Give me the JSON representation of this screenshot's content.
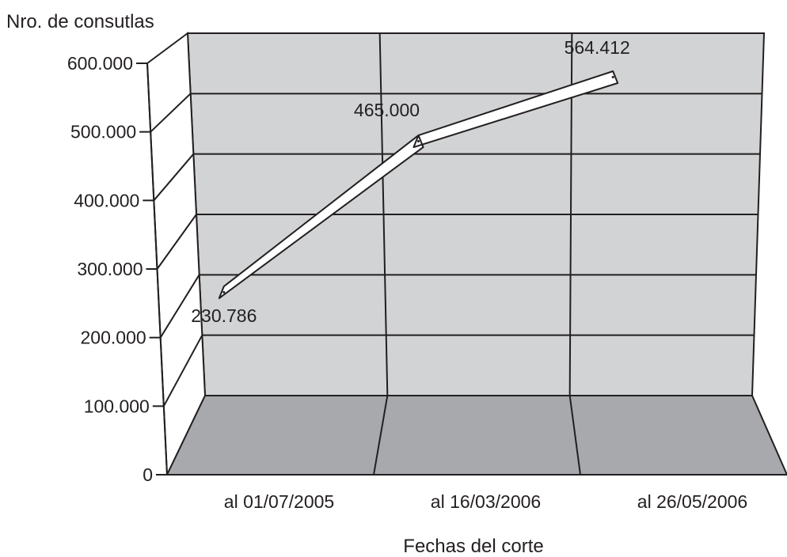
{
  "chart_data": {
    "type": "line",
    "ylabel": "Nro. de consutlas",
    "xlabel": "Fechas del corte",
    "categories": [
      "al 01/07/2005",
      "al 16/03/2006",
      "al 26/05/2006"
    ],
    "series": [
      {
        "values": [
          230786,
          465000,
          564412
        ]
      }
    ],
    "data_labels": [
      "230.786",
      "465.000",
      "564.412"
    ],
    "y_ticks": [
      0,
      100000,
      200000,
      300000,
      400000,
      500000,
      600000
    ],
    "y_tick_labels": [
      "0",
      "100.000",
      "200.000",
      "300.000",
      "400.000",
      "500.000",
      "600.000"
    ],
    "ylim": [
      0,
      600000
    ],
    "grid": true,
    "style": "3d",
    "colors": {
      "wall": "#d1d3d4",
      "floor": "#a7a9ac",
      "line_ribbon": "#ffffff",
      "stroke": "#231f20"
    }
  }
}
